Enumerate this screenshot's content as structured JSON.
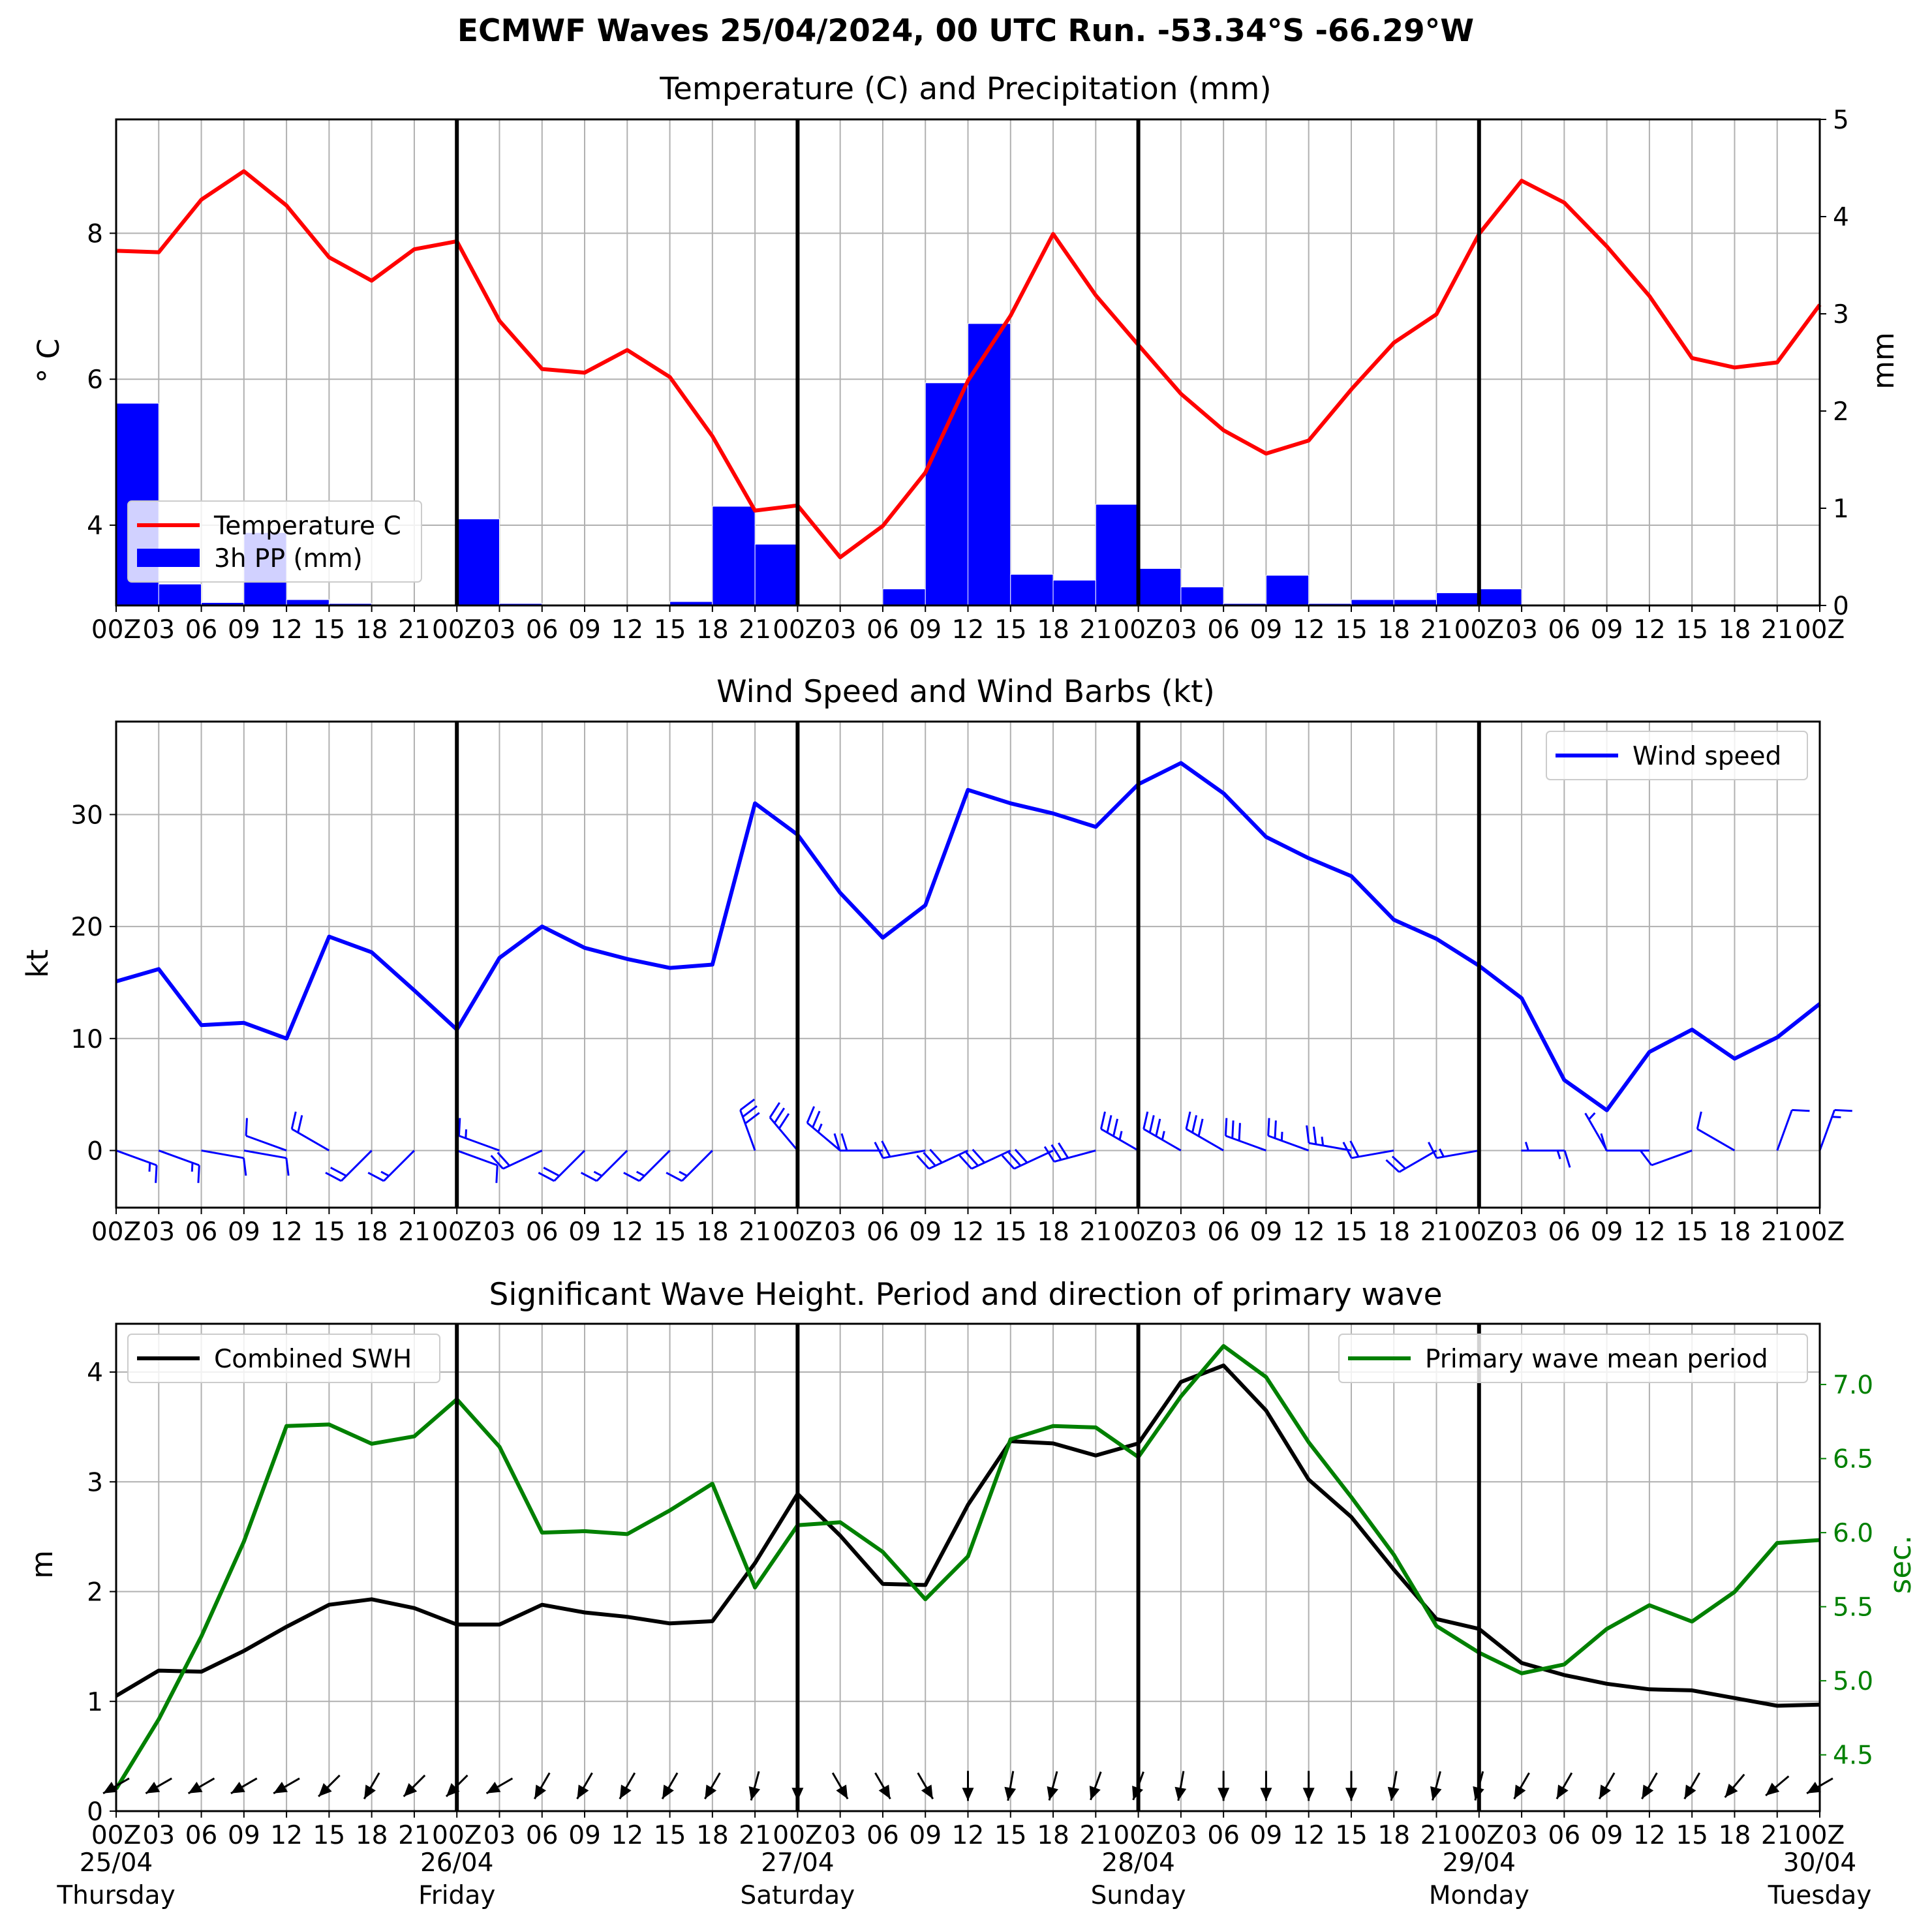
{
  "figure": {
    "suptitle": "ECMWF Waves 25/04/2024, 00 UTC Run. -53.34°S -66.29°W"
  },
  "time_axis": {
    "tick_labels": [
      "00Z",
      "03",
      "06",
      "09",
      "12",
      "15",
      "18",
      "21",
      "00Z",
      "03",
      "06",
      "09",
      "12",
      "15",
      "18",
      "21",
      "00Z",
      "03",
      "06",
      "09",
      "12",
      "15",
      "18",
      "21",
      "00Z",
      "03",
      "06",
      "09",
      "12",
      "15",
      "18",
      "21",
      "00Z",
      "03",
      "06",
      "09",
      "12",
      "15",
      "18",
      "21",
      "00Z"
    ],
    "day_labels": [
      {
        "step": 0,
        "date": "25/04",
        "weekday": "Thursday"
      },
      {
        "step": 8,
        "date": "26/04",
        "weekday": "Friday"
      },
      {
        "step": 16,
        "date": "27/04",
        "weekday": "Saturday"
      },
      {
        "step": 24,
        "date": "28/04",
        "weekday": "Sunday"
      },
      {
        "step": 32,
        "date": "29/04",
        "weekday": "Monday"
      },
      {
        "step": 40,
        "date": "30/04",
        "weekday": "Tuesday"
      }
    ],
    "day_boundaries": [
      8,
      16,
      24,
      32
    ]
  },
  "colors": {
    "temperature": "#ff0000",
    "precipitation": "#0000ff",
    "wind": "#0000ff",
    "swh": "#000000",
    "period": "#008000",
    "grid": "#b0b0b0",
    "day_line": "#000000"
  },
  "chart_data": [
    {
      "type": "line",
      "title": "Temperature (C) and Precipitation (mm)",
      "ylabel": "° C",
      "y2label": "mm",
      "ylim": [
        2.9,
        9.56
      ],
      "y2lim": [
        0,
        5
      ],
      "yticks": [
        4,
        6,
        8
      ],
      "y2ticks": [
        0,
        1,
        2,
        3,
        4,
        5
      ],
      "grid": true,
      "legend_position": "lower-left",
      "legend": [
        "Temperature C",
        "3h PP (mm)"
      ],
      "series": [
        {
          "name": "Temperature C",
          "axis": "left",
          "values": [
            7.76,
            7.74,
            8.46,
            8.85,
            8.38,
            7.67,
            7.35,
            7.78,
            7.89,
            6.8,
            6.14,
            6.09,
            6.4,
            6.03,
            5.22,
            4.2,
            4.27,
            3.56,
            3.99,
            4.72,
            5.98,
            6.87,
            7.99,
            7.15,
            6.47,
            5.8,
            5.3,
            4.98,
            5.16,
            5.86,
            6.5,
            6.89,
            7.99,
            8.72,
            8.42,
            7.82,
            7.14,
            6.29,
            6.16,
            6.23,
            7.02
          ]
        },
        {
          "name": "3h PP (mm)",
          "axis": "right",
          "type": "bar",
          "values": [
            2.08,
            0.22,
            0.03,
            0.75,
            0.06,
            0.02,
            0.0,
            0.0,
            0.89,
            0.02,
            0.0,
            0.0,
            0.0,
            0.04,
            1.02,
            0.63,
            0.0,
            0.0,
            0.17,
            2.29,
            2.9,
            0.32,
            0.26,
            1.04,
            0.38,
            0.19,
            0.02,
            0.31,
            0.02,
            0.06,
            0.06,
            0.13,
            0.17,
            0.0,
            0.0,
            0.0,
            0.0,
            0.0,
            0.0,
            0.01
          ]
        }
      ]
    },
    {
      "type": "line",
      "title": "Wind Speed and Wind Barbs (kt)",
      "ylabel": "kt",
      "ylim": [
        -5.1,
        38.3
      ],
      "yticks": [
        0,
        10,
        20,
        30
      ],
      "grid": true,
      "legend_position": "upper-right",
      "legend": [
        "Wind speed"
      ],
      "series": [
        {
          "name": "Wind speed",
          "values": [
            15.1,
            16.2,
            11.2,
            11.4,
            10.0,
            19.1,
            17.7,
            14.3,
            10.8,
            17.2,
            20.0,
            18.1,
            17.1,
            16.3,
            16.6,
            31.0,
            28.2,
            23.0,
            19.0,
            21.9,
            32.2,
            31.0,
            30.1,
            28.9,
            32.7,
            34.6,
            31.9,
            28.0,
            26.1,
            24.5,
            20.6,
            18.9,
            16.5,
            13.6,
            6.3,
            3.6,
            8.8,
            10.8,
            8.2,
            10.1,
            13.1
          ]
        }
      ],
      "barbs": {
        "baseline": 0,
        "direction_from_deg": [
          110,
          110,
          100,
          100,
          290,
          300,
          225,
          225,
          110,
          290,
          245,
          225,
          225,
          225,
          225,
          340,
          320,
          310,
          270,
          260,
          245,
          245,
          245,
          255,
          300,
          300,
          300,
          290,
          290,
          280,
          260,
          240,
          260,
          90,
          270,
          330,
          270,
          250,
          300,
          20,
          20
        ]
      }
    },
    {
      "type": "line",
      "title": "Significant Wave Height. Period and direction of primary wave",
      "ylabel": "m",
      "y2label": "sec.",
      "ylim": [
        0,
        4.44
      ],
      "y2lim": [
        4.12,
        7.41
      ],
      "yticks": [
        0,
        1,
        2,
        3,
        4
      ],
      "y2ticks": [
        4.5,
        5.0,
        5.5,
        6.0,
        6.5,
        7.0
      ],
      "grid": true,
      "legends": [
        {
          "position": "upper-left",
          "entries": [
            "Combined SWH"
          ]
        },
        {
          "position": "upper-right",
          "entries": [
            "Primary wave mean period"
          ]
        }
      ],
      "series": [
        {
          "name": "Combined SWH",
          "axis": "left",
          "values": [
            1.05,
            1.28,
            1.27,
            1.46,
            1.68,
            1.88,
            1.93,
            1.85,
            1.7,
            1.7,
            1.88,
            1.81,
            1.77,
            1.71,
            1.73,
            2.26,
            2.89,
            2.51,
            2.07,
            2.06,
            2.79,
            3.37,
            3.35,
            3.24,
            3.35,
            3.91,
            4.06,
            3.65,
            3.02,
            2.68,
            2.2,
            1.75,
            1.66,
            1.35,
            1.24,
            1.16,
            1.11,
            1.1,
            1.03,
            0.96,
            0.97
          ]
        },
        {
          "name": "Primary wave mean period",
          "axis": "right",
          "values": [
            4.27,
            4.74,
            5.3,
            5.94,
            6.72,
            6.73,
            6.6,
            6.65,
            6.9,
            6.58,
            6.0,
            6.01,
            5.99,
            6.15,
            6.33,
            5.63,
            6.05,
            6.07,
            5.87,
            5.55,
            5.84,
            6.63,
            6.72,
            6.71,
            6.51,
            6.92,
            7.26,
            7.05,
            6.61,
            6.24,
            5.85,
            5.37,
            5.19,
            5.05,
            5.11,
            5.35,
            5.51,
            5.4,
            5.6,
            5.93,
            5.95
          ]
        }
      ],
      "arrows": {
        "baseline": 0.23,
        "direction_to_deg": [
          240,
          240,
          240,
          240,
          240,
          225,
          210,
          225,
          225,
          240,
          210,
          210,
          210,
          210,
          210,
          195,
          180,
          150,
          150,
          150,
          180,
          190,
          195,
          200,
          200,
          190,
          180,
          180,
          180,
          180,
          190,
          195,
          195,
          210,
          210,
          210,
          210,
          210,
          220,
          230,
          240
        ]
      }
    }
  ]
}
